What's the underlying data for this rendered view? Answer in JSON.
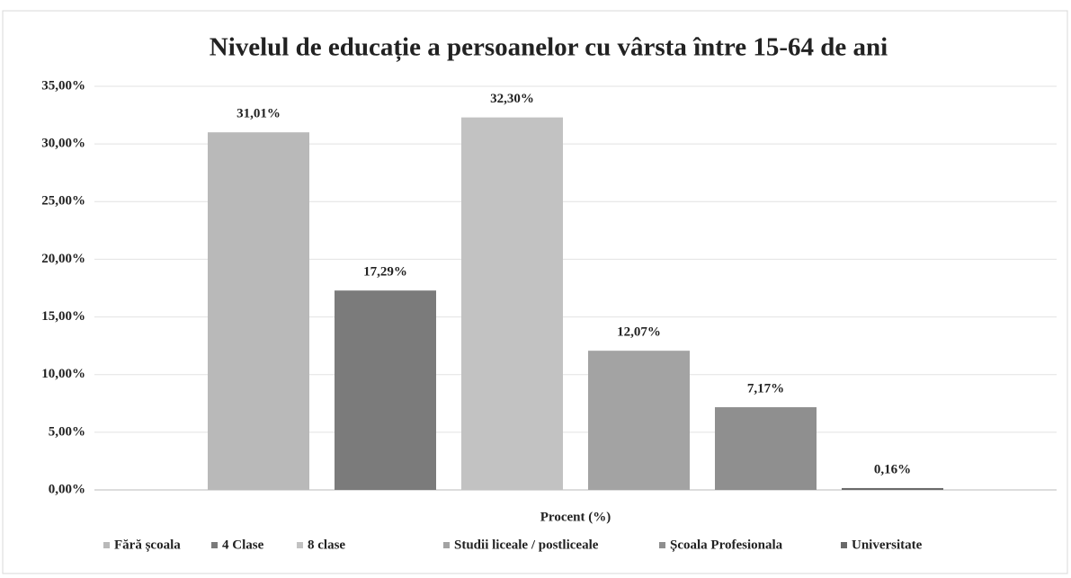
{
  "chart_data": {
    "type": "bar",
    "title": "Nivelul de educație a persoanelor cu vârsta între 15-64 de ani",
    "xlabel": "Procent (%)",
    "series": [
      {
        "name": "Fără școala",
        "color": "#b9b9b9",
        "values": [
          31.01
        ],
        "value_labels": [
          "31,01%"
        ]
      },
      {
        "name": "4 Clase",
        "color": "#7b7b7b",
        "values": [
          17.29
        ],
        "value_labels": [
          "17,29%"
        ]
      },
      {
        "name": "8 clase",
        "color": "#c2c2c2",
        "values": [
          32.3
        ],
        "value_labels": [
          "32,30%"
        ]
      },
      {
        "name": "Studii liceale / postliceale",
        "color": "#a3a3a3",
        "values": [
          12.07
        ],
        "value_labels": [
          "12,07%"
        ]
      },
      {
        "name": "Școala Profesionala",
        "color": "#8f8f8f",
        "values": [
          7.17
        ],
        "value_labels": [
          "7,17%"
        ]
      },
      {
        "name": "Universitate",
        "color": "#6a6a6a",
        "values": [
          0.16
        ],
        "value_labels": [
          "0,16%"
        ]
      }
    ],
    "ylim": [
      0,
      35
    ],
    "yticks": [
      {
        "value": 0,
        "label": "0,00%"
      },
      {
        "value": 5,
        "label": "5,00%"
      },
      {
        "value": 10,
        "label": "10,00%"
      },
      {
        "value": 15,
        "label": "15,00%"
      },
      {
        "value": 20,
        "label": "20,00%"
      },
      {
        "value": 25,
        "label": "25,00%"
      },
      {
        "value": 30,
        "label": "30,00%"
      },
      {
        "value": 35,
        "label": "35,00%"
      }
    ],
    "grid": true,
    "legend": "bottom"
  }
}
